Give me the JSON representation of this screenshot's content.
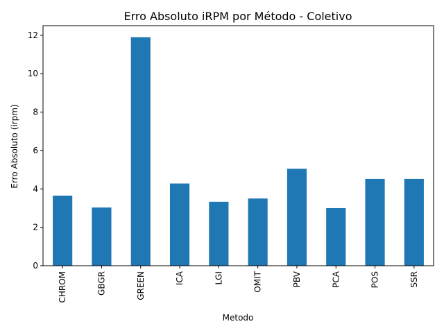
{
  "chart_data": {
    "type": "bar",
    "title": "Erro Absoluto iRPM por Método - Coletivo",
    "xlabel": "Metodo",
    "ylabel": "Erro Absoluto (irpm)",
    "categories": [
      "CHROM",
      "GBGR",
      "GREEN",
      "ICA",
      "LGI",
      "OMIT",
      "PBV",
      "PCA",
      "POS",
      "SSR"
    ],
    "values": [
      3.65,
      3.03,
      11.9,
      4.28,
      3.33,
      3.5,
      5.05,
      3.0,
      4.52,
      4.52
    ],
    "ylim": [
      0,
      12.5
    ],
    "yticks": [
      0,
      2,
      4,
      6,
      8,
      10,
      12
    ],
    "bar_color": "#1f77b4",
    "grid": false,
    "legend": "none"
  }
}
